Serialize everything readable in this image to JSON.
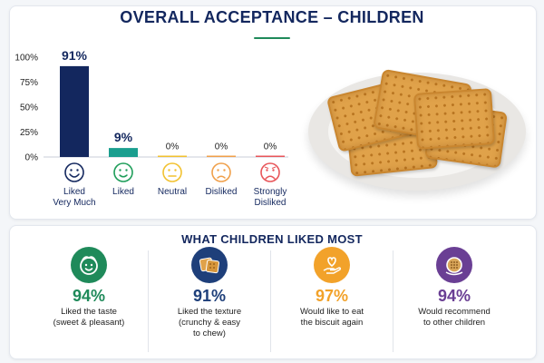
{
  "title": "OVERALL ACCEPTANCE – CHILDREN",
  "colors": {
    "navy": "#13275e",
    "teal": "#1a9e8f",
    "green": "#1f8a5a",
    "blue": "#1e3f7a",
    "orange": "#f2a22a",
    "purple": "#6a3f94"
  },
  "chart_data": {
    "type": "bar",
    "categories": [
      "Liked\nVery Much",
      "Liked",
      "Neutral",
      "Disliked",
      "Strongly\nDisliked"
    ],
    "values": [
      91,
      9,
      0,
      0,
      0
    ],
    "value_labels": [
      "91%",
      "9%",
      "0%",
      "0%",
      "0%"
    ],
    "ylim": [
      0,
      100
    ],
    "yticks": [
      "0%",
      "25%",
      "50%",
      "75%",
      "100%"
    ],
    "bar_colors": [
      "#13275e",
      "#1a9e8f",
      "#f2c230",
      "#f0a04b",
      "#e8565a"
    ],
    "icon_colors": [
      "#13275e",
      "#1f9e5a",
      "#f2c230",
      "#f0a04b",
      "#e8565a"
    ],
    "icons": [
      "very-happy-face-icon",
      "happy-face-icon",
      "neutral-face-icon",
      "sad-face-icon",
      "very-sad-face-icon"
    ],
    "title": "OVERALL ACCEPTANCE – CHILDREN",
    "xlabel": "",
    "ylabel": "",
    "grid": false
  },
  "section2": {
    "title": "WHAT CHILDREN LIKED MOST",
    "items": [
      {
        "pct": "94%",
        "desc_1": "Liked the taste",
        "desc_2": "(sweet & pleasant)",
        "desc_3": "",
        "color": "#1f8a5a",
        "icon": "happy-child-icon"
      },
      {
        "pct": "91%",
        "desc_1": "Liked the texture",
        "desc_2": "(crunchy & easy",
        "desc_3": "to chew)",
        "color": "#1e3f7a",
        "icon": "biscuit-icon"
      },
      {
        "pct": "97%",
        "desc_1": "Would like to eat",
        "desc_2": "the biscuit again",
        "desc_3": "",
        "color": "#f2a22a",
        "icon": "heart-hand-icon"
      },
      {
        "pct": "94%",
        "desc_1": "Would recommend",
        "desc_2": "to other children",
        "desc_3": "",
        "color": "#6a3f94",
        "icon": "recommend-biscuit-icon"
      }
    ]
  }
}
